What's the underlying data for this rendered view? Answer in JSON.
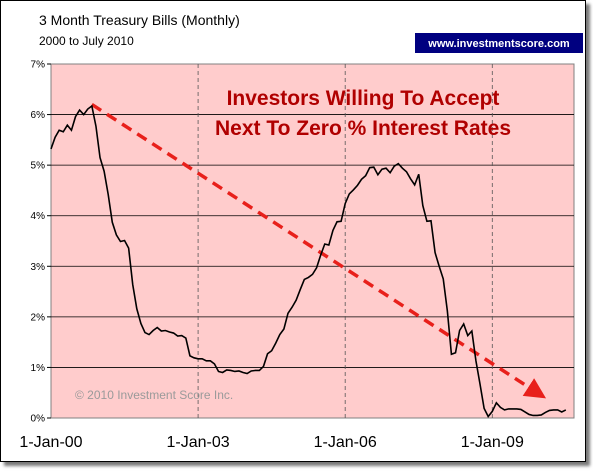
{
  "chart_data": {
    "type": "line",
    "title": "3 Month Treasury Bills  (Monthly)",
    "subtitle": "2000 to July 2010",
    "y_unit": "%",
    "ylim": [
      0,
      7
    ],
    "y_ticks": [
      "0%",
      "1%",
      "2%",
      "3%",
      "4%",
      "5%",
      "6%",
      "7%"
    ],
    "x_ticks": [
      "1-Jan-00",
      "1-Jan-03",
      "1-Jan-06",
      "1-Jan-09"
    ],
    "grid": true,
    "series": [
      {
        "x": [
          "2000-01",
          "2000-02",
          "2000-03",
          "2000-04",
          "2000-05",
          "2000-06",
          "2000-07",
          "2000-08",
          "2000-09",
          "2000-10",
          "2000-11",
          "2000-12",
          "2001-01",
          "2001-02",
          "2001-03",
          "2001-04",
          "2001-05",
          "2001-06",
          "2001-07",
          "2001-08",
          "2001-09",
          "2001-10",
          "2001-11",
          "2001-12",
          "2002-01",
          "2002-02",
          "2002-03",
          "2002-04",
          "2002-05",
          "2002-06",
          "2002-07",
          "2002-08",
          "2002-09",
          "2002-10",
          "2002-11",
          "2002-12",
          "2003-01",
          "2003-02",
          "2003-03",
          "2003-04",
          "2003-05",
          "2003-06",
          "2003-07",
          "2003-08",
          "2003-09",
          "2003-10",
          "2003-11",
          "2003-12",
          "2004-01",
          "2004-02",
          "2004-03",
          "2004-04",
          "2004-05",
          "2004-06",
          "2004-07",
          "2004-08",
          "2004-09",
          "2004-10",
          "2004-11",
          "2004-12",
          "2005-01",
          "2005-02",
          "2005-03",
          "2005-04",
          "2005-05",
          "2005-06",
          "2005-07",
          "2005-08",
          "2005-09",
          "2005-10",
          "2005-11",
          "2005-12",
          "2006-01",
          "2006-02",
          "2006-03",
          "2006-04",
          "2006-05",
          "2006-06",
          "2006-07",
          "2006-08",
          "2006-09",
          "2006-10",
          "2006-11",
          "2006-12",
          "2007-01",
          "2007-02",
          "2007-03",
          "2007-04",
          "2007-05",
          "2007-06",
          "2007-07",
          "2007-08",
          "2007-09",
          "2007-10",
          "2007-11",
          "2007-12",
          "2008-01",
          "2008-02",
          "2008-03",
          "2008-04",
          "2008-05",
          "2008-06",
          "2008-07",
          "2008-08",
          "2008-09",
          "2008-10",
          "2008-11",
          "2008-12",
          "2009-01",
          "2009-02",
          "2009-03",
          "2009-04",
          "2009-05",
          "2009-06",
          "2009-07",
          "2009-08",
          "2009-09",
          "2009-10",
          "2009-11",
          "2009-12",
          "2010-01",
          "2010-02",
          "2010-03",
          "2010-04",
          "2010-05",
          "2010-06",
          "2010-07"
        ],
        "values": [
          5.32,
          5.55,
          5.69,
          5.66,
          5.79,
          5.69,
          5.96,
          6.09,
          6.0,
          6.11,
          6.17,
          5.77,
          5.15,
          4.88,
          4.42,
          3.87,
          3.62,
          3.49,
          3.51,
          3.36,
          2.64,
          2.16,
          1.87,
          1.69,
          1.65,
          1.73,
          1.79,
          1.72,
          1.73,
          1.7,
          1.68,
          1.62,
          1.63,
          1.58,
          1.23,
          1.19,
          1.17,
          1.17,
          1.13,
          1.13,
          1.07,
          0.92,
          0.9,
          0.95,
          0.94,
          0.92,
          0.93,
          0.9,
          0.88,
          0.93,
          0.94,
          0.94,
          1.02,
          1.27,
          1.33,
          1.48,
          1.65,
          1.76,
          2.07,
          2.19,
          2.33,
          2.54,
          2.74,
          2.78,
          2.84,
          2.97,
          3.22,
          3.44,
          3.42,
          3.71,
          3.88,
          3.89,
          4.24,
          4.43,
          4.51,
          4.6,
          4.72,
          4.79,
          4.95,
          4.96,
          4.81,
          4.92,
          4.94,
          4.85,
          4.98,
          5.03,
          4.94,
          4.87,
          4.73,
          4.61,
          4.82,
          4.2,
          3.89,
          3.9,
          3.27,
          3.0,
          2.75,
          2.12,
          1.26,
          1.29,
          1.73,
          1.86,
          1.63,
          1.72,
          1.13,
          0.67,
          0.19,
          0.03,
          0.13,
          0.3,
          0.21,
          0.16,
          0.18,
          0.18,
          0.18,
          0.17,
          0.12,
          0.07,
          0.05,
          0.05,
          0.06,
          0.11,
          0.15,
          0.16,
          0.16,
          0.12,
          0.16
        ]
      }
    ],
    "trend_arrow": {
      "from": [
        "2000-11",
        6.2
      ],
      "to": [
        "2009-12",
        0.5
      ],
      "color": "#e8201b"
    },
    "annotations": [
      "Investors Willing To Accept",
      "Next To Zero % Interest Rates"
    ],
    "annotation_color": "#b00000",
    "plot_bg": "#ffcccc",
    "line_color": "#000000",
    "copyright": "© 2010 Investment Score Inc.",
    "url_badge": "www.investmentscore.com",
    "url_badge_bg": "#000080"
  }
}
